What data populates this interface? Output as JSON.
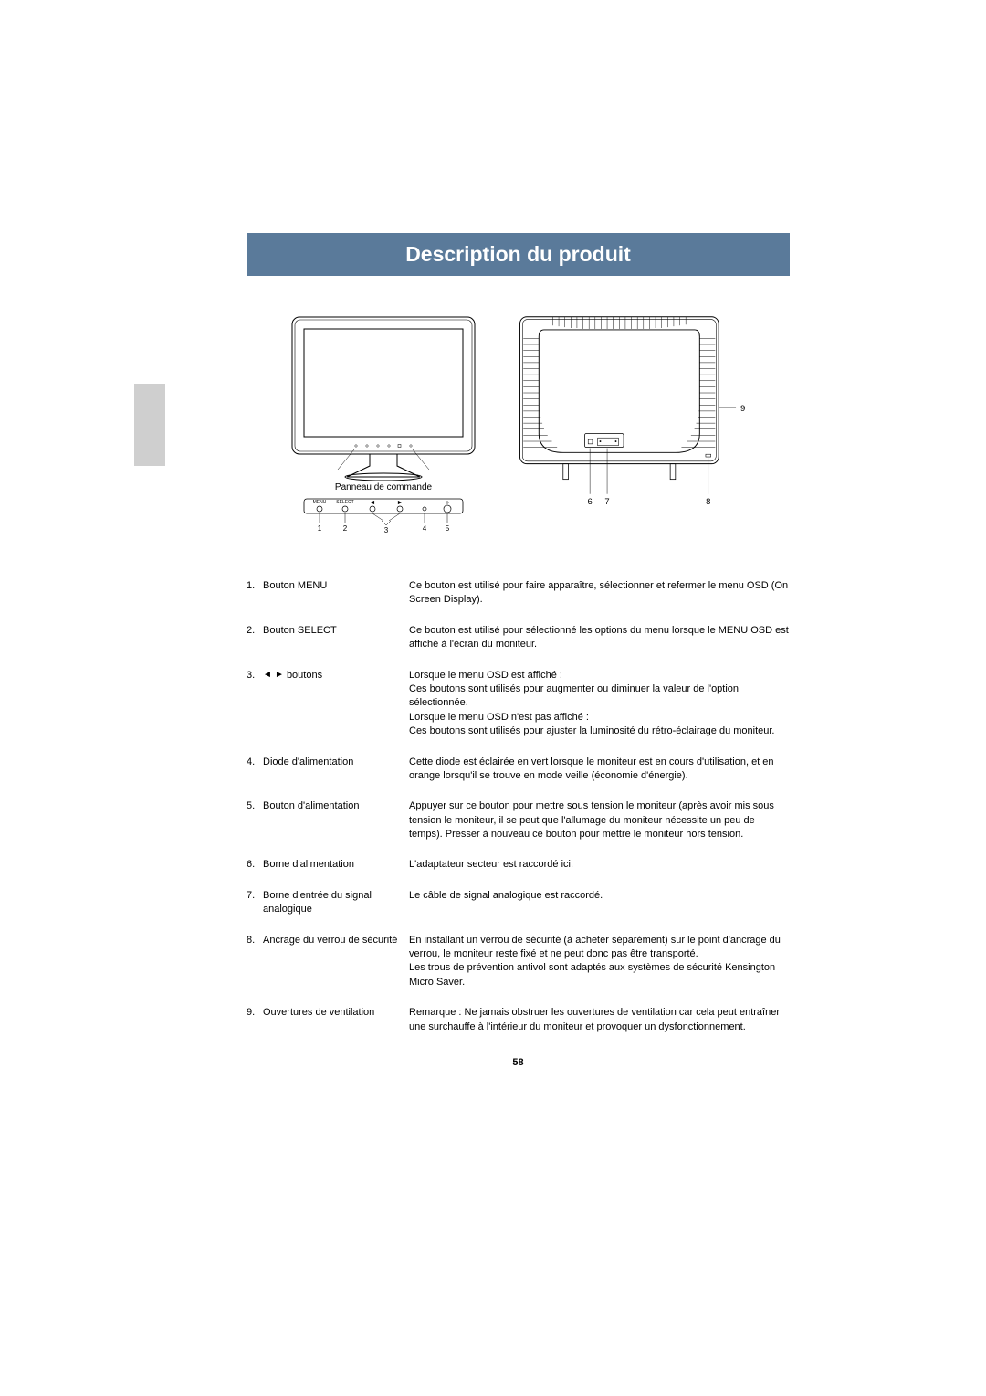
{
  "title": "Description du produit",
  "panel_caption": "Panneau de commande",
  "control_buttons": [
    "MENU",
    "SELECT",
    "◄",
    "►",
    ""
  ],
  "front_numbers": [
    "1",
    "2",
    "3",
    "4",
    "5"
  ],
  "back_numbers": [
    "6",
    "7",
    "8",
    "9"
  ],
  "items": [
    {
      "num": "1.",
      "label": "Bouton MENU",
      "desc": "Ce bouton est utilisé pour faire apparaître, sélectionner et refermer le menu OSD (On Screen Display)."
    },
    {
      "num": "2.",
      "label": "Bouton SELECT",
      "desc": "Ce bouton est utilisé pour sélectionné les options du menu lorsque le MENU OSD est affiché à l'écran du moniteur."
    },
    {
      "num": "3.",
      "label": "◄ ► boutons",
      "desc": "Lorsque le menu OSD est affiché :\nCes boutons sont utilisés pour augmenter ou diminuer la valeur de l'option sélectionnée.\nLorsque le menu OSD n'est pas affiché :\nCes boutons sont utilisés pour ajuster la luminosité du rétro-éclairage du moniteur."
    },
    {
      "num": "4.",
      "label": "Diode d'alimentation",
      "desc": "Cette diode est éclairée en vert lorsque le moniteur est en cours d'utilisation, et en orange lorsqu'il se trouve en mode veille (économie d'énergie)."
    },
    {
      "num": "5.",
      "label": "Bouton d'alimentation",
      "desc": "Appuyer sur ce bouton pour mettre sous tension le moniteur (après avoir mis sous tension le moniteur, il se peut que l'allumage du moniteur nécessite un peu de temps). Presser à nouveau ce bouton pour mettre le moniteur hors tension."
    },
    {
      "num": "6.",
      "label": "Borne d'alimentation",
      "desc": "L'adaptateur secteur est raccordé ici."
    },
    {
      "num": "7.",
      "label": "Borne d'entrée du signal analogique",
      "desc": "Le câble de signal analogique est raccordé."
    },
    {
      "num": "8.",
      "label": "Ancrage du verrou de sécurité",
      "desc": "En installant un verrou de sécurité (à acheter séparément) sur le point d'ancrage du verrou, le moniteur reste fixé et ne peut donc pas être transporté.\nLes trous de prévention antivol sont adaptés aux systèmes de sécurité Kensington Micro Saver."
    },
    {
      "num": "9.",
      "label": "Ouvertures de ventilation",
      "desc": "Remarque : Ne jamais obstruer les ouvertures de ventilation car cela peut entraîner une surchauffe à l'intérieur du moniteur et provoquer un dysfonctionnement."
    }
  ],
  "page_number": "58",
  "colors": {
    "title_bg": "#5a7a9a",
    "title_fg": "#ffffff",
    "side_tab": "#cfcfcf",
    "text": "#000000"
  },
  "typography": {
    "title_fontsize": 23,
    "body_fontsize": 11,
    "caption_fontsize": 10,
    "font_family": "Arial"
  }
}
